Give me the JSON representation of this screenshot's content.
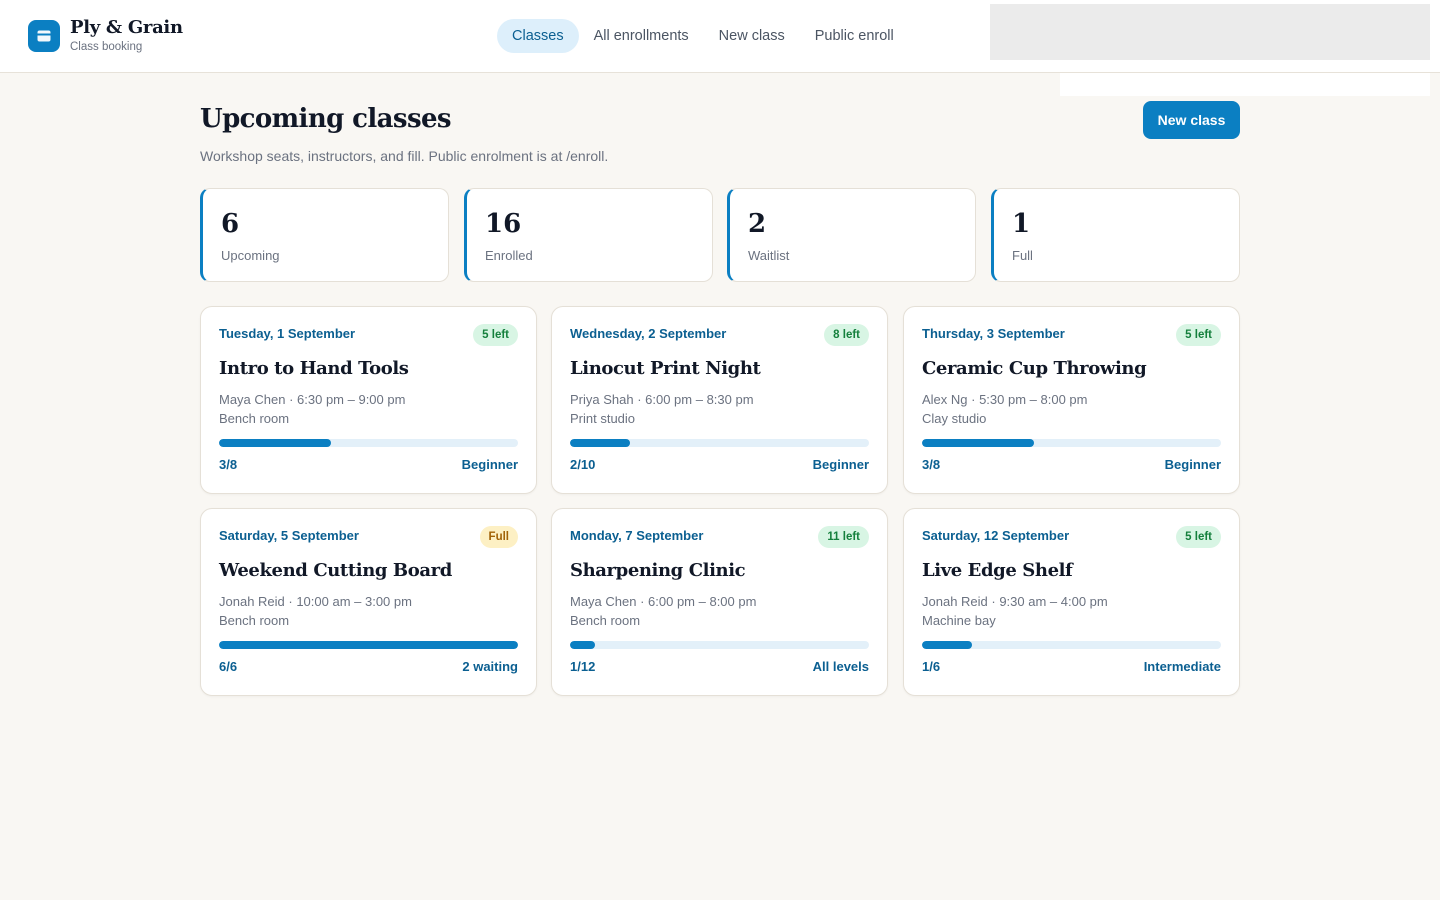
{
  "brand": {
    "name": "Ply & Grain",
    "subtitle": "Class booking",
    "logo_icon": "card-icon",
    "accent": "#0b7fc2"
  },
  "nav": [
    "Classes",
    "All enrollments",
    "New class",
    "Public enroll"
  ],
  "nav_active": "Classes",
  "page": {
    "title": "Upcoming classes",
    "subtitle": "Workshop seats, instructors, and fill. Public enrolment is at /enroll.",
    "new_button": "New class"
  },
  "stats": [
    {
      "value": "6",
      "label": "Upcoming"
    },
    {
      "value": "16",
      "label": "Enrolled"
    },
    {
      "value": "2",
      "label": "Waitlist"
    },
    {
      "value": "1",
      "label": "Full"
    }
  ],
  "classes": [
    {
      "date": "Tuesday, 1 September",
      "badge": "5 left",
      "badge_type": "ok",
      "title": "Intro to Hand Tools",
      "meta": "Maya Chen · 6:30 pm – 9:00 pm",
      "room": "Bench room",
      "count": "3/8",
      "fill": 0.375,
      "level": "Beginner"
    },
    {
      "date": "Wednesday, 2 September",
      "badge": "8 left",
      "badge_type": "ok",
      "title": "Linocut Print Night",
      "meta": "Priya Shah · 6:00 pm – 8:30 pm",
      "room": "Print studio",
      "count": "2/10",
      "fill": 0.2,
      "level": "Beginner"
    },
    {
      "date": "Thursday, 3 September",
      "badge": "5 left",
      "badge_type": "ok",
      "title": "Ceramic Cup Throwing",
      "meta": "Alex Ng · 5:30 pm – 8:00 pm",
      "room": "Clay studio",
      "count": "3/8",
      "fill": 0.375,
      "level": "Beginner"
    },
    {
      "date": "Saturday, 5 September",
      "badge": "Full",
      "badge_type": "full",
      "title": "Weekend Cutting Board",
      "meta": "Jonah Reid · 10:00 am – 3:00 pm",
      "room": "Bench room",
      "count": "6/6",
      "fill": 1.0,
      "level": "2 waiting"
    },
    {
      "date": "Monday, 7 September",
      "badge": "11 left",
      "badge_type": "ok",
      "title": "Sharpening Clinic",
      "meta": "Maya Chen · 6:00 pm – 8:00 pm",
      "room": "Bench room",
      "count": "1/12",
      "fill": 0.0833,
      "level": "All levels"
    },
    {
      "date": "Saturday, 12 September",
      "badge": "5 left",
      "badge_type": "ok",
      "title": "Live Edge Shelf",
      "meta": "Jonah Reid · 9:30 am – 4:00 pm",
      "room": "Machine bay",
      "count": "1/6",
      "fill": 0.1667,
      "level": "Intermediate"
    }
  ]
}
